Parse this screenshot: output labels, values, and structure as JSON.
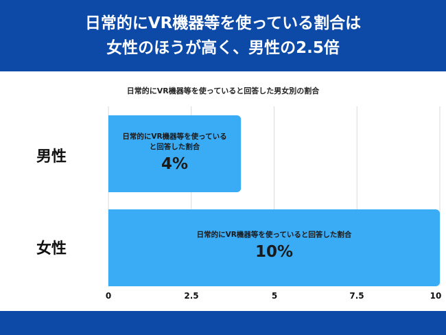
{
  "header": {
    "title_line1": "日常的にVR機器等を使っている割合は",
    "title_line2": "女性のほうが高く、男性の2.5倍"
  },
  "colors": {
    "header_bg": "#0d4aa8",
    "bar": "#3aabf5",
    "grid": "#d9d9d9"
  },
  "chart_data": {
    "type": "bar",
    "orientation": "horizontal",
    "title": "日常的にVR機器等を使っていると回答した男女別の割合",
    "categories": [
      "男性",
      "女性"
    ],
    "series": [
      {
        "values": [
          4,
          10
        ],
        "bar_labels": [
          [
            "日常的にVR機器等を使っている",
            "と回答した割合"
          ],
          [
            "日常的にVR機器等を使っていると回答した割合"
          ]
        ],
        "value_labels": [
          "4%",
          "10%"
        ]
      }
    ],
    "xlim": [
      0,
      10
    ],
    "xticks": [
      "0",
      "2.5",
      "5",
      "7.5",
      "10"
    ],
    "grid": true
  }
}
